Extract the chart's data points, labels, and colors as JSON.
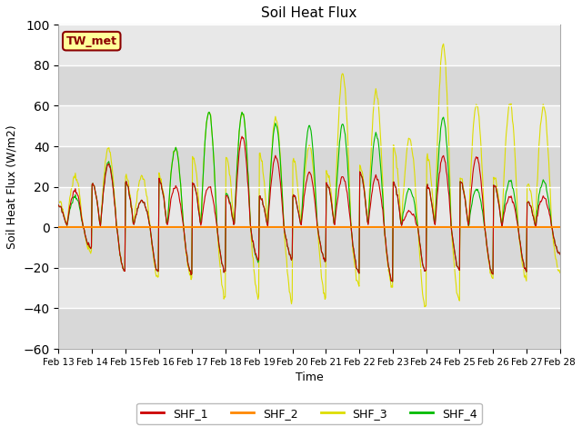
{
  "title": "Soil Heat Flux",
  "xlabel": "Time",
  "ylabel": "Soil Heat Flux (W/m2)",
  "ylim": [
    -60,
    100
  ],
  "yticks": [
    -60,
    -40,
    -20,
    0,
    20,
    40,
    60,
    80,
    100
  ],
  "bg_color": "#dcdcdc",
  "fig_color": "#ffffff",
  "annotation_text": "TW_met",
  "annotation_bg": "#ffff99",
  "annotation_border": "#8b0000",
  "line_colors": {
    "SHF_1": "#cc0000",
    "SHF_2": "#ff8800",
    "SHF_3": "#dddd00",
    "SHF_4": "#00bb00"
  },
  "n_days": 15,
  "start_day": 13,
  "shf1_peaks": [
    18,
    31,
    13,
    20,
    20,
    45,
    35,
    27,
    25,
    25,
    8,
    35,
    35,
    15,
    15
  ],
  "shf3_peaks": [
    25,
    39,
    25,
    39,
    57,
    57,
    54,
    40,
    76,
    67,
    44,
    90,
    61,
    61,
    60
  ],
  "shf4_peaks": [
    15,
    32,
    13,
    39,
    57,
    57,
    51,
    50,
    51,
    46,
    19,
    54,
    19,
    23,
    23
  ],
  "shf1_night": [
    -10,
    -22,
    -22,
    -23,
    -22,
    -16,
    -15,
    -16,
    -22,
    -27,
    -22,
    -21,
    -23,
    -21,
    -13
  ],
  "shf3_night": [
    -12,
    -22,
    -25,
    -25,
    -35,
    -35,
    -36,
    -34,
    -28,
    -30,
    -40,
    -36,
    -25,
    -25,
    -22
  ],
  "shf4_night": [
    -10,
    -22,
    -22,
    -23,
    -22,
    -17,
    -15,
    -16,
    -22,
    -27,
    -22,
    -21,
    -23,
    -21,
    -13
  ]
}
